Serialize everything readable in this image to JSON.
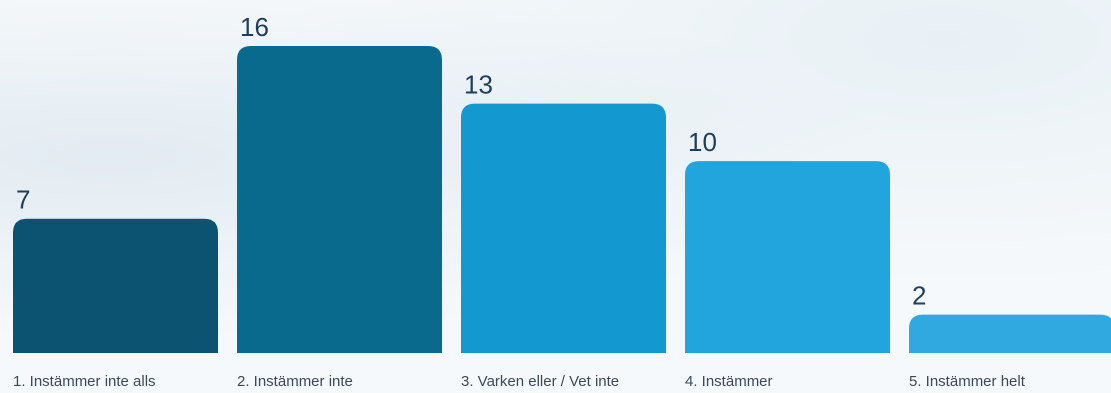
{
  "chart_data": {
    "type": "bar",
    "categories": [
      "1. Instämmer inte alls",
      "2. Instämmer inte",
      "3. Varken eller / Vet inte",
      "4. Instämmer",
      "5. Instämmer helt"
    ],
    "values": [
      7,
      16,
      13,
      10,
      2
    ],
    "colors": [
      "#0c5372",
      "#0a6a8d",
      "#1398cf",
      "#22a5dc",
      "#2fa9df"
    ],
    "title": "",
    "xlabel": "",
    "ylabel": "",
    "ylim": [
      0,
      16
    ],
    "grid": false,
    "legend": "none"
  }
}
